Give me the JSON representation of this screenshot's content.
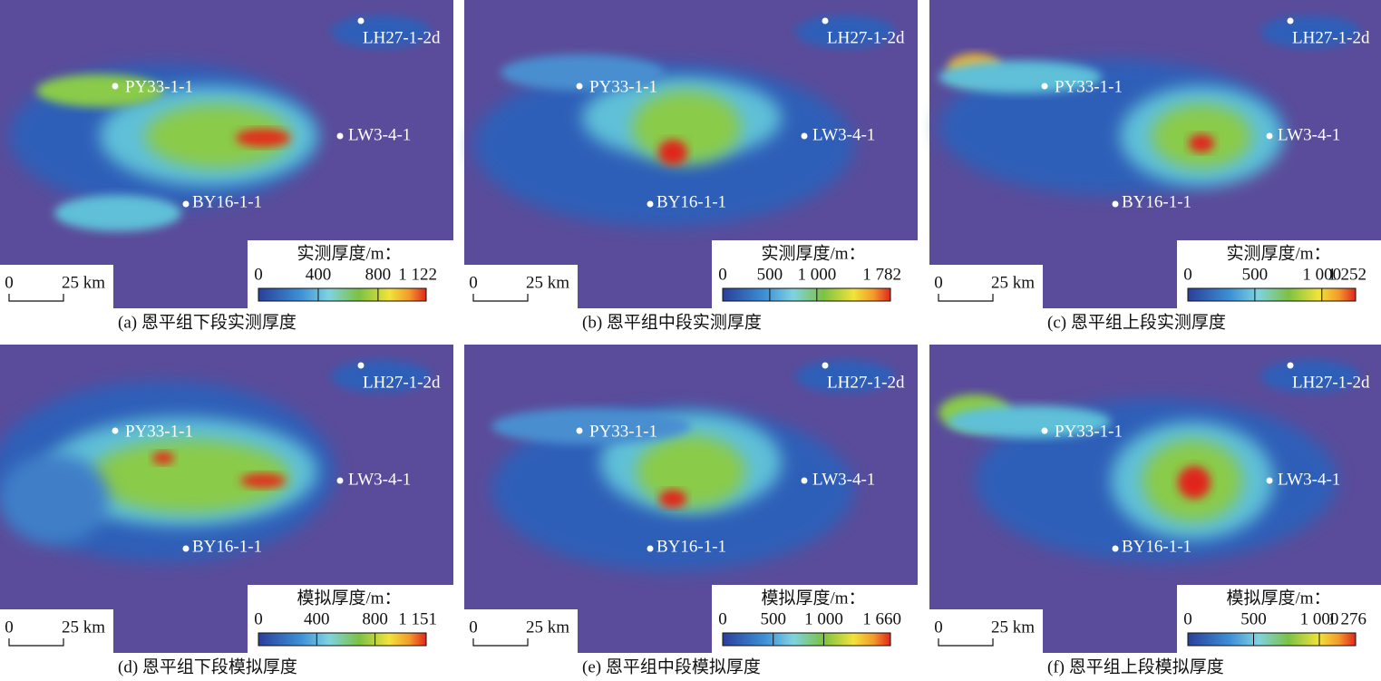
{
  "panels": [
    {
      "caption": "(a) 恩平组下段实测厚度",
      "legend_title": "实测厚度/m：",
      "colorbar": {
        "range": [
          0,
          1122
        ],
        "ticks": [
          0,
          400,
          800,
          {
            "value": 1122,
            "label": "1 122"
          }
        ]
      },
      "scale_bar": {
        "start": 0,
        "end": "25 km"
      },
      "wells": [
        "LH27-1-2d",
        "PY33-1-1",
        "LW3-4-1",
        "BY16-1-1"
      ]
    },
    {
      "caption": "(b) 恩平组中段实测厚度",
      "legend_title": "实测厚度/m：",
      "colorbar": {
        "range": [
          0,
          1782
        ],
        "ticks": [
          0,
          500,
          {
            "value": 1000,
            "label": "1 000"
          },
          {
            "value": 1782,
            "label": "1 782"
          }
        ]
      },
      "scale_bar": {
        "start": 0,
        "end": "25 km"
      },
      "wells": [
        "LH27-1-2d",
        "PY33-1-1",
        "LW3-4-1",
        "BY16-1-1"
      ]
    },
    {
      "caption": "(c) 恩平组上段实测厚度",
      "legend_title": "实测厚度/m：",
      "colorbar": {
        "range": [
          0,
          1252
        ],
        "ticks": [
          0,
          500,
          {
            "value": 1000,
            "label": "1 000"
          },
          {
            "value": 1252,
            "label": "1 252"
          }
        ]
      },
      "scale_bar": {
        "start": 0,
        "end": "25 km"
      },
      "wells": [
        "LH27-1-2d",
        "PY33-1-1",
        "LW3-4-1",
        "BY16-1-1"
      ]
    },
    {
      "caption": "(d) 恩平组下段模拟厚度",
      "legend_title": "模拟厚度/m：",
      "colorbar": {
        "range": [
          0,
          1151
        ],
        "ticks": [
          0,
          400,
          800,
          {
            "value": 1151,
            "label": "1 151"
          }
        ]
      },
      "scale_bar": {
        "start": 0,
        "end": "25 km"
      },
      "wells": [
        "LH27-1-2d",
        "PY33-1-1",
        "LW3-4-1",
        "BY16-1-1"
      ]
    },
    {
      "caption": "(e) 恩平组中段模拟厚度",
      "legend_title": "模拟厚度/m：",
      "colorbar": {
        "range": [
          0,
          1660
        ],
        "ticks": [
          0,
          500,
          {
            "value": 1000,
            "label": "1 000"
          },
          {
            "value": 1660,
            "label": "1 660"
          }
        ]
      },
      "scale_bar": {
        "start": 0,
        "end": "25 km"
      },
      "wells": [
        "LH27-1-2d",
        "PY33-1-1",
        "LW3-4-1",
        "BY16-1-1"
      ]
    },
    {
      "caption": "(f) 恩平组上段模拟厚度",
      "legend_title": "模拟厚度/m：",
      "colorbar": {
        "range": [
          0,
          1276
        ],
        "ticks": [
          0,
          500,
          {
            "value": 1000,
            "label": "1 000"
          },
          {
            "value": 1276,
            "label": "1 276"
          }
        ]
      },
      "scale_bar": {
        "start": 0,
        "end": "25 km"
      },
      "wells": [
        "LH27-1-2d",
        "PY33-1-1",
        "LW3-4-1",
        "BY16-1-1"
      ]
    }
  ]
}
